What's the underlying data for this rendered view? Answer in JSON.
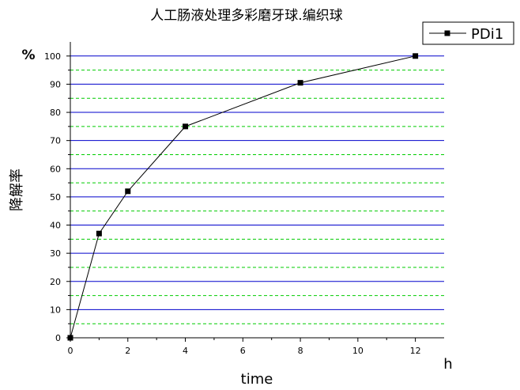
{
  "chart_data": {
    "type": "line",
    "title": "人工肠液处理多彩磨牙球.编织球",
    "xlabel": "time",
    "x_unit": "h",
    "ylabel": "降解率",
    "y_unit": "%",
    "xlim": [
      0,
      13
    ],
    "ylim": [
      0,
      105
    ],
    "x_ticks": [
      0,
      2,
      4,
      6,
      8,
      10,
      12
    ],
    "y_ticks": [
      0,
      10,
      20,
      30,
      40,
      50,
      60,
      70,
      80,
      90,
      100
    ],
    "grid": {
      "major_y": [
        10,
        20,
        30,
        40,
        50,
        60,
        70,
        80,
        90,
        100
      ],
      "minor_y": [
        5,
        15,
        25,
        35,
        45,
        55,
        65,
        75,
        85,
        95
      ],
      "major_color": "#0000cc",
      "minor_color": "#00cc00"
    },
    "legend_position": "top-right",
    "series": [
      {
        "name": "PDi1",
        "color": "#000000",
        "x": [
          0,
          1,
          2,
          4,
          8,
          12
        ],
        "y": [
          0,
          37,
          52,
          75,
          90.5,
          100
        ]
      }
    ]
  }
}
